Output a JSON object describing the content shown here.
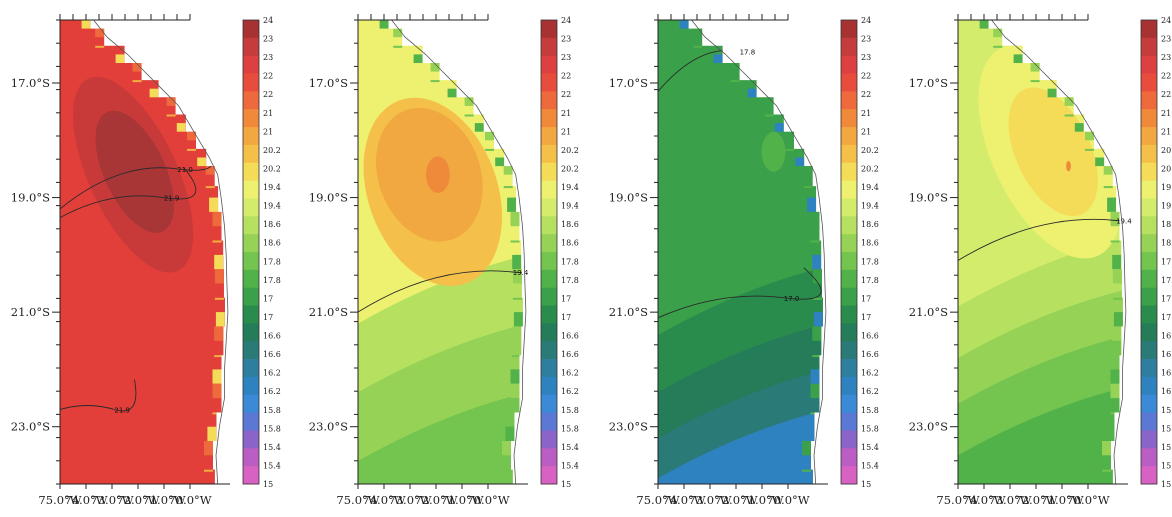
{
  "lat_ticks": [
    "17.0°S",
    "19.0°S",
    "21.0°S",
    "23.0°S"
  ],
  "lon_ticks": [
    "75.0°W",
    "74.0°W",
    "73.0°W",
    "72.0°W",
    "71.0°W",
    "70.0°W"
  ],
  "colorbar_ticks": [
    "24",
    "23",
    "23",
    "22",
    "22",
    "21",
    "21",
    "20.2",
    "20.2",
    "19.4",
    "19.4",
    "18.6",
    "18.6",
    "17.8",
    "17.8",
    "17",
    "17",
    "16.6",
    "16.6",
    "16.2",
    "16.2",
    "15.8",
    "15.8",
    "15.4",
    "15.4",
    "15"
  ],
  "colorbar_colors": [
    "#a83232",
    "#c43c3c",
    "#dc4040",
    "#e84c3c",
    "#ee6a3c",
    "#f08a3a",
    "#f2a840",
    "#f4c04a",
    "#f4dc58",
    "#eef070",
    "#d4ec6c",
    "#b6e060",
    "#96d256",
    "#74c450",
    "#52b24a",
    "#3aa04a",
    "#2a8c4c",
    "#247c58",
    "#2a7a78",
    "#2e7ea0",
    "#2f82c0",
    "#3a8ad8",
    "#5a78d4",
    "#8a64c8",
    "#bb5ec4",
    "#d862c4"
  ],
  "panels": [
    {
      "name": "panel-1",
      "background": "#e23f3a",
      "bands": [
        {
          "color": "#f2a044",
          "lat": 23.3
        },
        {
          "color": "#ec7a3c",
          "lat": 22.6
        },
        {
          "color": "#e8523a",
          "lat": 22.0
        },
        {
          "color": "#e23f3a",
          "lat": 21.2
        }
      ],
      "blobs": [
        {
          "color": "#c83a3a",
          "cx_lon": 72.85,
          "cy_lat": 18.6,
          "rx_lon": 1.3,
          "ry_lat": 1.85,
          "rot": -25
        },
        {
          "color": "#a83636",
          "cx_lon": 72.8,
          "cy_lat": 18.55,
          "rx_lon": 0.9,
          "ry_lat": 1.15,
          "rot": -25
        }
      ],
      "coast_colors": [
        "#f4dc58",
        "#f2b040",
        "#ee6a3c"
      ],
      "contours": [
        {
          "label": "21.0",
          "label_lon": 71.55,
          "label_lat": 18.5
        },
        {
          "label": "21.9",
          "label_lon": 71.95,
          "label_lat": 19.0
        },
        {
          "label": "21.9",
          "label_lon": 73.4,
          "label_lat": 22.7
        }
      ]
    },
    {
      "name": "panel-2",
      "background": "#eef070",
      "bands": [
        {
          "color": "#b6e060",
          "lat": 21.2
        },
        {
          "color": "#96d256",
          "lat": 22.4
        },
        {
          "color": "#74c450",
          "lat": 23.6
        }
      ],
      "blobs": [
        {
          "color": "#f4c04a",
          "cx_lon": 72.8,
          "cy_lat": 18.9,
          "rx_lon": 1.9,
          "ry_lat": 1.7,
          "rot": -20
        },
        {
          "color": "#f2a840",
          "cx_lon": 72.9,
          "cy_lat": 18.6,
          "rx_lon": 1.5,
          "ry_lat": 1.2,
          "rot": -20
        },
        {
          "color": "#ee8a3a",
          "cx_lon": 72.65,
          "cy_lat": 18.6,
          "rx_lon": 0.35,
          "ry_lat": 0.32,
          "rot": 0
        }
      ],
      "coast_colors": [
        "#52b24a",
        "#74c450",
        "#96d256"
      ],
      "contours": [
        {
          "label": "19.4",
          "label_lon": 70.45,
          "label_lat": 20.3
        }
      ]
    },
    {
      "name": "panel-3",
      "background": "#3aa04a",
      "bands": [
        {
          "color": "#2a8c4c",
          "lat": 21.4
        },
        {
          "color": "#247c58",
          "lat": 22.4
        },
        {
          "color": "#2a7a78",
          "lat": 23.2
        },
        {
          "color": "#2f82c0",
          "lat": 23.9
        }
      ],
      "blobs": [
        {
          "color": "#52b24a",
          "cx_lon": 71.6,
          "cy_lat": 18.2,
          "rx_lon": 0.35,
          "ry_lat": 0.35,
          "rot": 0
        }
      ],
      "coast_colors": [
        "#2f82c0",
        "#52b24a",
        "#3aa04a"
      ],
      "contours": [
        {
          "label": "17.8",
          "label_lon": 72.6,
          "label_lat": 16.45
        },
        {
          "label": "17.0",
          "label_lon": 71.3,
          "label_lat": 20.75
        }
      ]
    },
    {
      "name": "panel-4",
      "background": "#d4ec6c",
      "bands": [
        {
          "color": "#b6e060",
          "lat": 20.9
        },
        {
          "color": "#96d256",
          "lat": 21.8
        },
        {
          "color": "#74c450",
          "lat": 22.6
        },
        {
          "color": "#52b24a",
          "lat": 23.5
        }
      ],
      "blobs": [
        {
          "color": "#eef070",
          "cx_lon": 72.3,
          "cy_lat": 18.2,
          "rx_lon": 1.7,
          "ry_lat": 2.0,
          "rot": -25
        },
        {
          "color": "#f4dc58",
          "cx_lon": 72.2,
          "cy_lat": 18.2,
          "rx_lon": 1.1,
          "ry_lat": 1.2,
          "rot": -25
        },
        {
          "color": "#ee8a3a",
          "cx_lon": 71.75,
          "cy_lat": 18.45,
          "rx_lon": 0.07,
          "ry_lat": 0.09,
          "rot": 0
        }
      ],
      "coast_colors": [
        "#52b24a",
        "#74c450",
        "#96d256"
      ],
      "contours": [
        {
          "label": "19.4",
          "label_lon": 70.35,
          "label_lat": 19.4
        }
      ]
    }
  ]
}
